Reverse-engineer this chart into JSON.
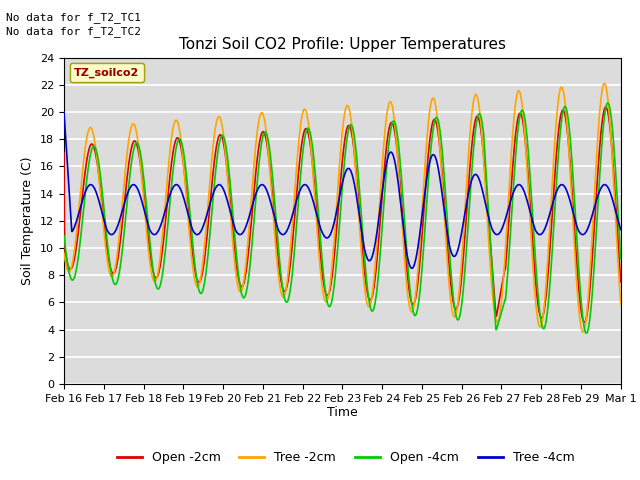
{
  "title": "Tonzi Soil CO2 Profile: Upper Temperatures",
  "xlabel": "Time",
  "ylabel": "Soil Temperature (C)",
  "ylim": [
    0,
    24
  ],
  "bg_color": "#dcdcdc",
  "fig_bg": "#ffffff",
  "no_data_texts": [
    "No data for f_T2_TC1",
    "No data for f_T2_TC2"
  ],
  "legend_box_label": "TZ_soilco2",
  "series": [
    {
      "label": "Open -2cm",
      "color": "#dd0000"
    },
    {
      "label": "Tree -2cm",
      "color": "#ffa500"
    },
    {
      "label": "Open -4cm",
      "color": "#00cc00"
    },
    {
      "label": "Tree -4cm",
      "color": "#0000cc"
    }
  ],
  "xtick_labels": [
    "Feb 16",
    "Feb 17",
    "Feb 18",
    "Feb 19",
    "Feb 20",
    "Feb 21",
    "Feb 22",
    "Feb 23",
    "Feb 24",
    "Feb 25",
    "Feb 26",
    "Feb 27",
    "Feb 28",
    "Feb 29",
    "Mar 1"
  ],
  "ytick_values": [
    0,
    2,
    4,
    6,
    8,
    10,
    12,
    14,
    16,
    18,
    20,
    22,
    24
  ]
}
